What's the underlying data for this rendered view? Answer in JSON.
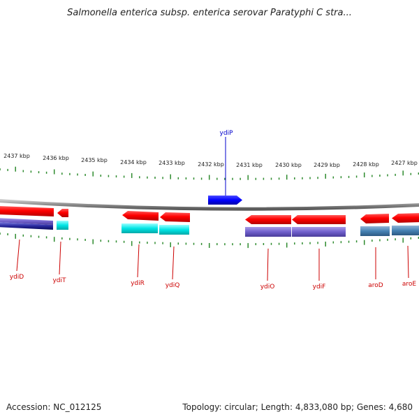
{
  "title": "Salmonella enterica subsp. enterica serovar Paratyphi C stra...",
  "footer": {
    "accession": "Accession: NC_012125",
    "summary": "Topology: circular; Length: 4,833,080 bp; Genes: 4,680"
  },
  "scale": {
    "labels": [
      "2437 kbp",
      "2436 kbp",
      "2435 kbp",
      "2434 kbp",
      "2433 kbp",
      "2432 kbp",
      "2431 kbp",
      "2430 kbp",
      "2429 kbp",
      "2428 kbp",
      "2427 kbp"
    ]
  },
  "genes": [
    {
      "name": "ydiP",
      "strand": "forward",
      "color": "#0000ff"
    },
    {
      "name": "ydiD",
      "strand": "reverse",
      "color": "#ff0000",
      "second_color": "#1a1a8c"
    },
    {
      "name": "ydiT",
      "strand": "reverse",
      "color": "#ff0000",
      "second_color": "#00e5e5"
    },
    {
      "name": "ydiR",
      "strand": "reverse",
      "color": "#ff0000",
      "second_color": "#00e5e5"
    },
    {
      "name": "ydiQ",
      "strand": "reverse",
      "color": "#ff0000",
      "second_color": "#00e5e5"
    },
    {
      "name": "ydiO",
      "strand": "reverse",
      "color": "#ff0000",
      "second_color": "#7b68d6"
    },
    {
      "name": "ydiF",
      "strand": "reverse",
      "color": "#ff0000",
      "second_color": "#7b68d6"
    },
    {
      "name": "aroD",
      "strand": "reverse",
      "color": "#ff0000",
      "second_color": "#4682b4"
    },
    {
      "name": "aroE",
      "strand": "reverse",
      "color": "#ff0000",
      "second_color": "#4682b4"
    }
  ],
  "colors": {
    "backbone": "#8c8c8c",
    "tick": "#2e8b2e",
    "reverse_label": "#cc0000",
    "forward_label": "#0000cc"
  }
}
